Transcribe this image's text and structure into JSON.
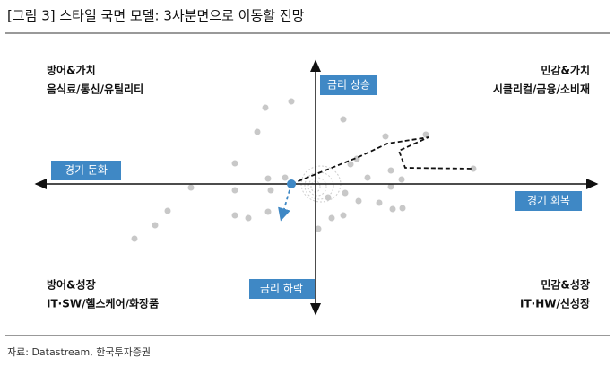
{
  "header": {
    "title": "[그림 3] 스타일 국면 모델: 3사분면으로 이동할 전망"
  },
  "axes": {
    "up": "금리 상승",
    "down": "금리 하락",
    "left": "경기 둔화",
    "right": "경기 회복"
  },
  "quadrants": [
    {
      "line1": "방어&가치",
      "line2": "음식료/통신/유틸리티"
    },
    {
      "line1": "민감&가치",
      "line2": "시클리컬/금융/소비재"
    },
    {
      "line1": "방어&성장",
      "line2": "IT·SW/헬스케어/화장품"
    },
    {
      "line1": "민감&성장",
      "line2": "IT·HW/신성장"
    }
  ],
  "source": "자료: Datastream, 한국투자증권"
}
